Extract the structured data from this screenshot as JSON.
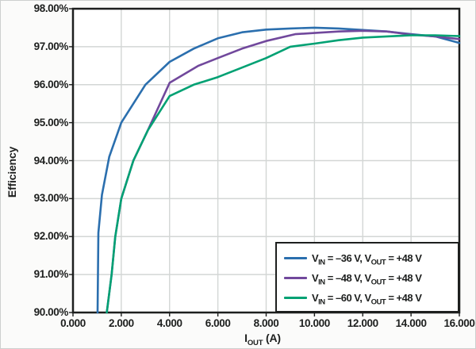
{
  "figure": {
    "background": "#fbfbfa",
    "plot_background": "#ffffff",
    "grid_color": "#d3d6d5",
    "axis_color": "#1d1f1e",
    "text_color": "#1d1f1e"
  },
  "chart_data": {
    "type": "line",
    "title": "",
    "xlabel_main": "I",
    "xlabel_sub": "OUT",
    "xlabel_unit": " (A)",
    "ylabel": "Efficiency",
    "xlim": [
      0,
      16
    ],
    "ylim": [
      90,
      98
    ],
    "grid": true,
    "legend_position": "bottom-right",
    "x_ticks": [
      {
        "v": 0,
        "label": "0.000"
      },
      {
        "v": 2,
        "label": "2.000"
      },
      {
        "v": 4,
        "label": "4.000"
      },
      {
        "v": 6,
        "label": "6.000"
      },
      {
        "v": 8,
        "label": "8.000"
      },
      {
        "v": 10,
        "label": "10.000"
      },
      {
        "v": 12,
        "label": "12.000"
      },
      {
        "v": 14,
        "label": "14.000"
      },
      {
        "v": 16,
        "label": "16.000"
      }
    ],
    "y_ticks": [
      {
        "v": 90,
        "label": "90.00%"
      },
      {
        "v": 91,
        "label": "91.00%"
      },
      {
        "v": 92,
        "label": "92.00%"
      },
      {
        "v": 93,
        "label": "93.00%"
      },
      {
        "v": 94,
        "label": "94.00%"
      },
      {
        "v": 95,
        "label": "95.00%"
      },
      {
        "v": 96,
        "label": "96.00%"
      },
      {
        "v": 97,
        "label": "97.00%"
      },
      {
        "v": 98,
        "label": "98.00%"
      }
    ],
    "series": [
      {
        "name": "VIN = –36 V, VOUT = +48 V",
        "color": "#2b6fae",
        "points": [
          [
            1.02,
            90.0
          ],
          [
            1.05,
            92.1
          ],
          [
            1.2,
            93.1
          ],
          [
            1.5,
            94.1
          ],
          [
            2,
            95.0
          ],
          [
            3,
            96.0
          ],
          [
            4,
            96.6
          ],
          [
            5,
            96.95
          ],
          [
            6,
            97.22
          ],
          [
            7,
            97.38
          ],
          [
            8,
            97.45
          ],
          [
            9,
            97.48
          ],
          [
            10,
            97.5
          ],
          [
            11,
            97.48
          ],
          [
            12,
            97.44
          ],
          [
            13,
            97.4
          ],
          [
            14,
            97.33
          ],
          [
            15,
            97.27
          ],
          [
            16,
            97.1
          ]
        ]
      },
      {
        "name": "VIN = –48 V, VOUT = +48 V",
        "color": "#71489c",
        "points": [
          [
            1.4,
            90.0
          ],
          [
            1.6,
            91.0
          ],
          [
            1.75,
            92.0
          ],
          [
            2,
            93.0
          ],
          [
            2.5,
            94.0
          ],
          [
            3.1,
            94.8
          ],
          [
            4,
            96.05
          ],
          [
            5.2,
            96.5
          ],
          [
            6,
            96.7
          ],
          [
            7,
            96.95
          ],
          [
            8,
            97.15
          ],
          [
            9.2,
            97.33
          ],
          [
            10,
            97.36
          ],
          [
            11,
            97.4
          ],
          [
            12,
            97.42
          ],
          [
            13,
            97.4
          ],
          [
            14,
            97.32
          ],
          [
            15,
            97.27
          ],
          [
            16,
            97.2
          ]
        ]
      },
      {
        "name": "VIN = –60 V, VOUT = +48 V",
        "color": "#00a173",
        "points": [
          [
            1.4,
            90.0
          ],
          [
            1.6,
            91.0
          ],
          [
            1.75,
            92.0
          ],
          [
            2,
            93.0
          ],
          [
            2.5,
            94.0
          ],
          [
            3.1,
            94.8
          ],
          [
            4,
            95.7
          ],
          [
            5,
            96.0
          ],
          [
            6,
            96.2
          ],
          [
            7,
            96.45
          ],
          [
            8,
            96.7
          ],
          [
            9,
            97.0
          ],
          [
            10,
            97.08
          ],
          [
            11,
            97.17
          ],
          [
            12,
            97.24
          ],
          [
            13,
            97.27
          ],
          [
            14,
            97.3
          ],
          [
            15,
            97.3
          ],
          [
            16,
            97.28
          ]
        ]
      }
    ],
    "legend": {
      "items": [
        {
          "vin_prefix": "V",
          "vin_sub": "IN",
          "vin_rest": " = –36 V, ",
          "vout_prefix": "V",
          "vout_sub": "OUT",
          "vout_rest": " = +48 V"
        },
        {
          "vin_prefix": "V",
          "vin_sub": "IN",
          "vin_rest": " = –48 V, ",
          "vout_prefix": "V",
          "vout_sub": "OUT",
          "vout_rest": " = +48 V"
        },
        {
          "vin_prefix": "V",
          "vin_sub": "IN",
          "vin_rest": " = –60 V, ",
          "vout_prefix": "V",
          "vout_sub": "OUT",
          "vout_rest": " = +48 V"
        }
      ]
    }
  }
}
